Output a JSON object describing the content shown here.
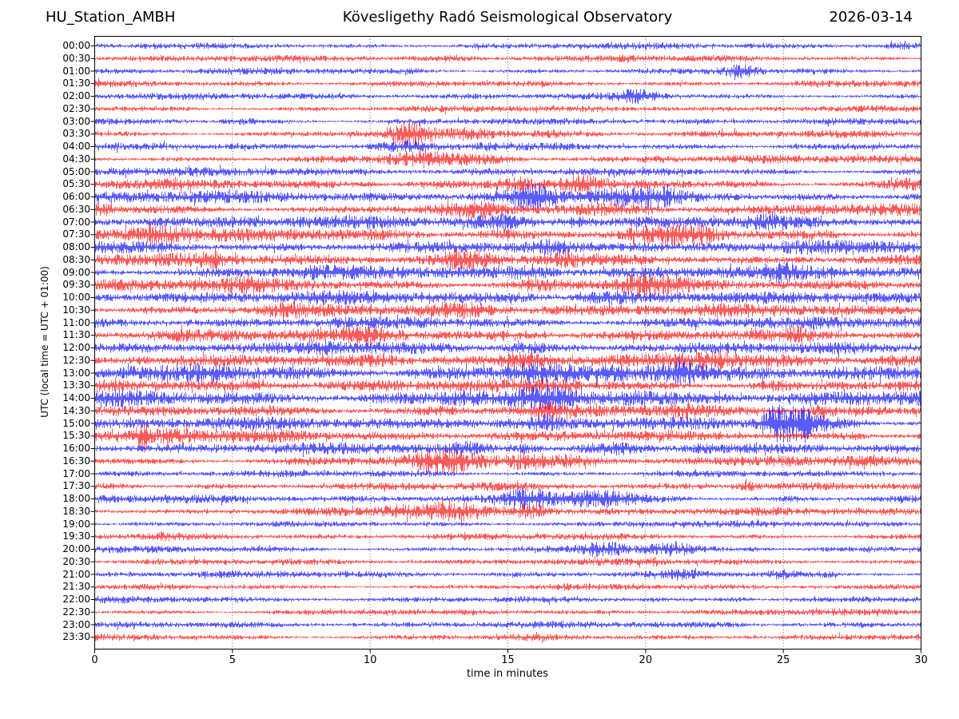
{
  "header": {
    "station": "HU_Station_AMBH",
    "observatory": "Kövesligethy Radó Seismological Observatory",
    "date": "2026-03-14"
  },
  "chart_data": {
    "type": "line",
    "subtype": "helicorder-daily-seismogram",
    "title": "Kövesligethy Radó Seismological Observatory",
    "station": "HU_Station_AMBH",
    "date": "2026-03-14",
    "xlabel": "time in minutes",
    "ylabel": "UTC (local time = UTC + 01:00)",
    "xlim": [
      0,
      30
    ],
    "x_ticks": [
      0,
      5,
      10,
      15,
      20,
      25,
      30
    ],
    "x_gridlines": [
      5,
      10,
      15,
      20,
      25
    ],
    "grid_style": "dotted-vertical",
    "legend": "none",
    "colors": {
      "even_rows": "#0000ff",
      "odd_rows": "#ff0000",
      "frame": "#000000",
      "grid": "#444444"
    },
    "row_minutes": 30,
    "rows": [
      {
        "time": "00:00",
        "color": "#0000ff",
        "amp": 2.1,
        "bursts": [
          [
            2.0,
            0.3,
            1.5
          ],
          [
            13.8,
            0.3,
            1.3
          ],
          [
            29.2,
            0.4,
            1.6
          ]
        ]
      },
      {
        "time": "00:30",
        "color": "#ff0000",
        "amp": 2.1,
        "bursts": [
          [
            13.1,
            0.4,
            1.5
          ],
          [
            19.4,
            0.3,
            1.4
          ],
          [
            26.0,
            0.3,
            1.3
          ]
        ]
      },
      {
        "time": "01:00",
        "color": "#0000ff",
        "amp": 2.1,
        "bursts": [
          [
            11.5,
            0.3,
            1.4
          ],
          [
            23.5,
            0.45,
            3.2
          ]
        ]
      },
      {
        "time": "01:30",
        "color": "#ff0000",
        "amp": 2.2,
        "bursts": [
          [
            6.0,
            0.4,
            1.2
          ],
          [
            26.0,
            0.3,
            1.2
          ]
        ]
      },
      {
        "time": "02:00",
        "color": "#0000ff",
        "amp": 2.2,
        "bursts": [
          [
            19.8,
            0.5,
            2.6
          ],
          [
            26.7,
            0.3,
            1.5
          ]
        ]
      },
      {
        "time": "02:30",
        "color": "#ff0000",
        "amp": 2.1,
        "bursts": [
          [
            20.6,
            0.3,
            1.4
          ]
        ]
      },
      {
        "time": "03:00",
        "color": "#0000ff",
        "amp": 2.2,
        "bursts": [
          [
            5.3,
            0.5,
            2.0
          ],
          [
            24.0,
            0.3,
            1.2
          ]
        ]
      },
      {
        "time": "03:30",
        "color": "#ff0000",
        "amp": 2.3,
        "bursts": [
          [
            11.5,
            0.5,
            3.4
          ],
          [
            13.7,
            0.7,
            2.2
          ],
          [
            16.8,
            0.4,
            1.5
          ],
          [
            23.2,
            0.4,
            1.4
          ]
        ]
      },
      {
        "time": "04:00",
        "color": "#0000ff",
        "amp": 2.5,
        "bursts": [
          [
            2.5,
            0.3,
            1.3
          ],
          [
            11.2,
            0.6,
            1.7
          ],
          [
            14.2,
            0.4,
            1.4
          ]
        ]
      },
      {
        "time": "04:30",
        "color": "#ff0000",
        "amp": 2.5,
        "bursts": [
          [
            11.7,
            0.8,
            3.0
          ],
          [
            13.8,
            1.2,
            1.8
          ],
          [
            20.6,
            0.6,
            1.5
          ]
        ]
      },
      {
        "time": "05:00",
        "color": "#0000ff",
        "amp": 2.7,
        "bursts": [
          [
            1.0,
            0.5,
            1.4
          ],
          [
            14.0,
            0.4,
            1.3
          ],
          [
            21.0,
            0.4,
            1.3
          ]
        ]
      },
      {
        "time": "05:30",
        "color": "#ff0000",
        "amp": 3.2,
        "bursts": [
          [
            15.3,
            0.5,
            2.2
          ],
          [
            17.6,
            0.5,
            2.4
          ],
          [
            21.5,
            1.5,
            1.4
          ],
          [
            29.4,
            0.5,
            1.8
          ]
        ]
      },
      {
        "time": "06:00",
        "color": "#0000ff",
        "amp": 3.8,
        "bursts": [
          [
            15.8,
            0.7,
            2.5
          ],
          [
            18.6,
            0.5,
            1.8
          ],
          [
            20.3,
            0.8,
            2.2
          ],
          [
            23.1,
            0.4,
            1.5
          ]
        ]
      },
      {
        "time": "06:30",
        "color": "#ff0000",
        "amp": 3.5,
        "bursts": [
          [
            0.3,
            0.3,
            1.8
          ],
          [
            13.6,
            0.7,
            1.7
          ],
          [
            18.5,
            1.0,
            1.5
          ],
          [
            26.0,
            0.4,
            1.4
          ]
        ]
      },
      {
        "time": "07:00",
        "color": "#0000ff",
        "amp": 4.0,
        "bursts": [
          [
            2.3,
            0.5,
            1.8
          ],
          [
            14.5,
            0.8,
            1.8
          ],
          [
            17.5,
            0.3,
            2.2
          ],
          [
            24.4,
            0.5,
            1.5
          ]
        ]
      },
      {
        "time": "07:30",
        "color": "#ff0000",
        "amp": 4.0,
        "bursts": [
          [
            2.2,
            0.8,
            2.4
          ],
          [
            14.6,
            0.5,
            1.6
          ],
          [
            20.6,
            0.9,
            2.0
          ],
          [
            22.2,
            0.5,
            1.8
          ]
        ]
      },
      {
        "time": "08:00",
        "color": "#0000ff",
        "amp": 4.2,
        "bursts": [
          [
            16.5,
            0.5,
            1.5
          ],
          [
            19.8,
            0.8,
            2.0
          ],
          [
            25.5,
            0.6,
            1.6
          ]
        ]
      },
      {
        "time": "08:30",
        "color": "#ff0000",
        "amp": 4.0,
        "bursts": [
          [
            4.3,
            0.4,
            1.7
          ],
          [
            13.4,
            0.8,
            2.0
          ],
          [
            17.0,
            0.5,
            1.5
          ],
          [
            25.8,
            0.5,
            1.6
          ]
        ]
      },
      {
        "time": "09:00",
        "color": "#0000ff",
        "amp": 4.4,
        "bursts": [
          [
            8.0,
            0.5,
            1.4
          ],
          [
            16.0,
            0.6,
            1.6
          ],
          [
            25.0,
            0.5,
            1.4
          ]
        ]
      },
      {
        "time": "09:30",
        "color": "#ff0000",
        "amp": 4.2,
        "bursts": [
          [
            5.5,
            0.5,
            1.5
          ],
          [
            16.0,
            0.5,
            1.6
          ],
          [
            19.9,
            0.8,
            2.4
          ],
          [
            28.0,
            0.4,
            1.4
          ]
        ]
      },
      {
        "time": "10:00",
        "color": "#0000ff",
        "amp": 4.4,
        "bursts": [
          [
            15.8,
            0.6,
            1.8
          ],
          [
            18.4,
            0.8,
            2.0
          ],
          [
            21.0,
            0.5,
            1.5
          ]
        ]
      },
      {
        "time": "10:30",
        "color": "#ff0000",
        "amp": 4.0,
        "bursts": [
          [
            6.8,
            0.5,
            1.7
          ],
          [
            13.5,
            0.9,
            1.8
          ],
          [
            16.5,
            0.5,
            1.5
          ]
        ]
      },
      {
        "time": "11:00",
        "color": "#0000ff",
        "amp": 4.0,
        "bursts": [
          [
            12.0,
            0.5,
            1.3
          ],
          [
            22.0,
            0.5,
            1.3
          ]
        ]
      },
      {
        "time": "11:30",
        "color": "#ff0000",
        "amp": 4.0,
        "bursts": [
          [
            3.0,
            0.6,
            1.5
          ],
          [
            10.0,
            0.5,
            1.4
          ],
          [
            25.6,
            0.3,
            1.8
          ]
        ]
      },
      {
        "time": "12:00",
        "color": "#0000ff",
        "amp": 4.2,
        "bursts": [
          [
            8.5,
            0.5,
            1.4
          ],
          [
            15.7,
            0.5,
            2.0
          ],
          [
            19.5,
            0.5,
            1.5
          ]
        ]
      },
      {
        "time": "12:30",
        "color": "#ff0000",
        "amp": 4.2,
        "bursts": [
          [
            1.5,
            0.5,
            1.5
          ],
          [
            10.5,
            0.5,
            1.6
          ],
          [
            12.8,
            0.5,
            1.6
          ],
          [
            15.6,
            0.6,
            2.2
          ],
          [
            22.5,
            0.7,
            1.6
          ],
          [
            29.0,
            0.5,
            1.6
          ]
        ]
      },
      {
        "time": "13:00",
        "color": "#0000ff",
        "amp": 5.4,
        "bursts": [
          [
            4.3,
            0.8,
            1.6
          ],
          [
            15.8,
            0.6,
            1.8
          ],
          [
            21.3,
            0.6,
            1.7
          ],
          [
            27.0,
            0.5,
            1.3
          ]
        ]
      },
      {
        "time": "13:30",
        "color": "#ff0000",
        "amp": 4.0,
        "bursts": [
          [
            6.0,
            0.5,
            1.3
          ],
          [
            17.0,
            0.5,
            1.4
          ],
          [
            24.5,
            0.4,
            1.5
          ]
        ]
      },
      {
        "time": "14:00",
        "color": "#0000ff",
        "amp": 5.4,
        "bursts": [
          [
            13.3,
            0.6,
            1.6
          ],
          [
            16.4,
            0.7,
            1.9
          ],
          [
            19.6,
            0.8,
            1.8
          ],
          [
            23.0,
            0.5,
            1.4
          ]
        ]
      },
      {
        "time": "14:30",
        "color": "#ff0000",
        "amp": 3.8,
        "bursts": [
          [
            12.5,
            0.5,
            1.5
          ],
          [
            16.5,
            0.5,
            1.6
          ],
          [
            21.5,
            0.5,
            1.4
          ],
          [
            26.5,
            0.2,
            2.2
          ]
        ]
      },
      {
        "time": "15:00",
        "color": "#0000ff",
        "amp": 4.0,
        "bursts": [
          [
            13.0,
            0.5,
            1.6
          ],
          [
            16.2,
            0.5,
            1.7
          ],
          [
            24.6,
            0.25,
            3.5
          ],
          [
            25.2,
            0.6,
            5.0
          ],
          [
            25.7,
            0.1,
            6.5
          ],
          [
            26.8,
            0.8,
            1.8
          ]
        ]
      },
      {
        "time": "15:30",
        "color": "#ff0000",
        "amp": 3.6,
        "bursts": [
          [
            1.75,
            0.15,
            3.5
          ],
          [
            2.8,
            0.6,
            1.8
          ],
          [
            7.0,
            0.5,
            1.3
          ],
          [
            27.6,
            0.3,
            2.0
          ]
        ]
      },
      {
        "time": "16:00",
        "color": "#0000ff",
        "amp": 3.6,
        "bursts": [
          [
            13.6,
            0.5,
            1.7
          ],
          [
            15.8,
            0.5,
            2.4
          ],
          [
            18.6,
            0.9,
            2.0
          ],
          [
            22.0,
            0.4,
            1.5
          ]
        ]
      },
      {
        "time": "16:30",
        "color": "#ff0000",
        "amp": 3.2,
        "bursts": [
          [
            12.8,
            0.9,
            2.6
          ],
          [
            15.7,
            0.6,
            2.8
          ],
          [
            17.2,
            0.5,
            1.7
          ],
          [
            25.0,
            0.4,
            1.4
          ]
        ]
      },
      {
        "time": "17:00",
        "color": "#0000ff",
        "amp": 2.3,
        "bursts": [
          [
            9.0,
            0.4,
            1.2
          ],
          [
            21.0,
            0.4,
            1.2
          ]
        ]
      },
      {
        "time": "17:30",
        "color": "#ff0000",
        "amp": 2.5,
        "bursts": [
          [
            4.0,
            0.5,
            1.3
          ],
          [
            14.0,
            0.5,
            1.3
          ],
          [
            23.7,
            0.2,
            2.2
          ]
        ]
      },
      {
        "time": "18:00",
        "color": "#0000ff",
        "amp": 2.7,
        "bursts": [
          [
            15.8,
            0.5,
            3.4
          ],
          [
            17.2,
            0.4,
            1.8
          ],
          [
            18.4,
            0.9,
            2.8
          ],
          [
            21.3,
            0.3,
            1.6
          ],
          [
            25.4,
            0.3,
            1.5
          ]
        ]
      },
      {
        "time": "18:30",
        "color": "#ff0000",
        "amp": 2.7,
        "bursts": [
          [
            11.0,
            0.5,
            1.6
          ],
          [
            12.9,
            1.0,
            2.4
          ],
          [
            15.9,
            0.5,
            3.2
          ]
        ]
      },
      {
        "time": "19:00",
        "color": "#0000ff",
        "amp": 2.1,
        "bursts": [
          [
            1.5,
            0.3,
            1.3
          ],
          [
            20.0,
            0.4,
            1.2
          ]
        ]
      },
      {
        "time": "19:30",
        "color": "#ff0000",
        "amp": 2.1,
        "bursts": [
          [
            2.5,
            0.4,
            1.5
          ],
          [
            13.0,
            0.3,
            1.2
          ]
        ]
      },
      {
        "time": "20:00",
        "color": "#0000ff",
        "amp": 2.3,
        "bursts": [
          [
            18.6,
            0.6,
            2.8
          ],
          [
            20.9,
            0.7,
            2.6
          ],
          [
            24.0,
            0.3,
            1.4
          ]
        ]
      },
      {
        "time": "20:30",
        "color": "#ff0000",
        "amp": 2.1,
        "bursts": [
          [
            7.0,
            0.3,
            1.2
          ],
          [
            20.3,
            0.15,
            2.0
          ]
        ]
      },
      {
        "time": "21:00",
        "color": "#0000ff",
        "amp": 2.2,
        "bursts": [
          [
            21.3,
            0.4,
            1.8
          ],
          [
            24.9,
            0.4,
            2.2
          ],
          [
            26.6,
            0.3,
            1.6
          ],
          [
            28.5,
            0.3,
            1.4
          ]
        ]
      },
      {
        "time": "21:30",
        "color": "#ff0000",
        "amp": 2.0,
        "bursts": [
          [
            9.0,
            0.3,
            1.2
          ],
          [
            17.0,
            0.3,
            1.2
          ]
        ]
      },
      {
        "time": "22:00",
        "color": "#0000ff",
        "amp": 2.2,
        "bursts": [
          [
            13.5,
            0.3,
            1.2
          ],
          [
            23.4,
            0.4,
            2.2
          ],
          [
            27.8,
            0.3,
            1.4
          ]
        ]
      },
      {
        "time": "22:30",
        "color": "#ff0000",
        "amp": 2.0,
        "bursts": [
          [
            3.0,
            0.3,
            1.2
          ],
          [
            27.0,
            0.3,
            1.3
          ]
        ]
      },
      {
        "time": "23:00",
        "color": "#0000ff",
        "amp": 2.1,
        "bursts": [
          [
            5.0,
            0.3,
            1.2
          ],
          [
            23.2,
            0.4,
            1.6
          ],
          [
            28.0,
            0.3,
            1.5
          ]
        ]
      },
      {
        "time": "23:30",
        "color": "#ff0000",
        "amp": 2.1,
        "bursts": [
          [
            12.5,
            0.4,
            1.4
          ],
          [
            16.2,
            0.3,
            1.7
          ],
          [
            23.7,
            0.3,
            1.6
          ]
        ]
      }
    ]
  },
  "layout_note": "48 half-hour traces, alternating blue/red, 30 minutes per line"
}
